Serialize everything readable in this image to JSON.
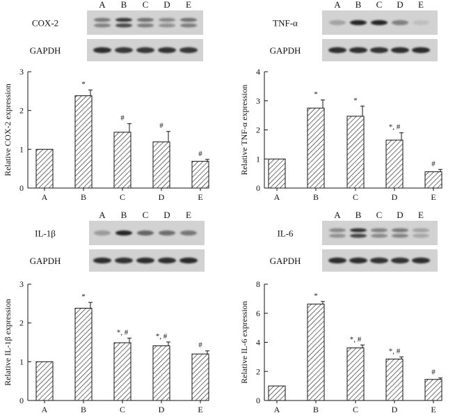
{
  "colors": {
    "bar_fill": "#ffffff",
    "hatch": "#222222",
    "blot_bg": "#d2d2d2",
    "band": "#1a1a1a"
  },
  "panels": [
    {
      "lane_labels": [
        "A",
        "B",
        "C",
        "D",
        "E"
      ],
      "protein_label": "COX-2",
      "control_label": "GAPDH",
      "protein_band_strength": [
        0.55,
        0.95,
        0.6,
        0.45,
        0.6
      ],
      "control_band_strength": [
        0.9,
        0.85,
        0.85,
        0.88,
        0.85
      ],
      "protein_band_double": true,
      "chart_data": {
        "type": "bar",
        "categories": [
          "A",
          "B",
          "C",
          "D",
          "E"
        ],
        "values": [
          1.0,
          2.38,
          1.44,
          1.19,
          0.69
        ],
        "errors": [
          0,
          0.15,
          0.22,
          0.27,
          0.05
        ],
        "annotations": [
          "",
          "*",
          "#",
          "#",
          "#"
        ],
        "ylabel": "Relative COX-2 expression",
        "ylim": [
          0,
          3
        ],
        "yticks": [
          0,
          1,
          2,
          3
        ],
        "ytick_labels": [
          "0",
          "1",
          "2",
          "3"
        ]
      }
    },
    {
      "lane_labels": [
        "A",
        "B",
        "C",
        "D",
        "E"
      ],
      "protein_label": "TNF-α",
      "control_label": "GAPDH",
      "protein_band_strength": [
        0.25,
        0.95,
        0.95,
        0.45,
        0.1
      ],
      "control_band_strength": [
        0.9,
        0.9,
        0.88,
        0.9,
        0.92
      ],
      "protein_band_double": false,
      "chart_data": {
        "type": "bar",
        "categories": [
          "A",
          "B",
          "C",
          "D",
          "E"
        ],
        "values": [
          1.0,
          2.75,
          2.47,
          1.65,
          0.56
        ],
        "errors": [
          0,
          0.28,
          0.35,
          0.25,
          0.08
        ],
        "annotations": [
          "",
          "*",
          "*",
          "*, #",
          "#"
        ],
        "ylabel": "Relative TNF-α expression",
        "ylim": [
          0,
          4
        ],
        "yticks": [
          0,
          1,
          2,
          3,
          4
        ],
        "ytick_labels": [
          "0",
          "1",
          "2",
          "3",
          "4"
        ]
      }
    },
    {
      "lane_labels": [
        "A",
        "B",
        "C",
        "D",
        "E"
      ],
      "protein_label": "IL-1β",
      "control_label": "GAPDH",
      "protein_band_strength": [
        0.3,
        0.95,
        0.6,
        0.55,
        0.5
      ],
      "control_band_strength": [
        0.9,
        0.88,
        0.9,
        0.9,
        0.92
      ],
      "protein_band_double": false,
      "chart_data": {
        "type": "bar",
        "categories": [
          "A",
          "B",
          "C",
          "D",
          "E"
        ],
        "values": [
          1.0,
          2.38,
          1.49,
          1.41,
          1.2
        ],
        "errors": [
          0,
          0.15,
          0.12,
          0.1,
          0.08
        ],
        "annotations": [
          "",
          "*",
          "*, #",
          "*, #",
          "#"
        ],
        "ylabel": "Relative IL-1β expression",
        "ylim": [
          0,
          3
        ],
        "yticks": [
          0,
          1,
          2,
          3
        ],
        "ytick_labels": [
          "0",
          "1",
          "2",
          "3"
        ]
      }
    },
    {
      "lane_labels": [
        "A",
        "B",
        "C",
        "D",
        "E"
      ],
      "protein_label": "IL-6",
      "control_label": "GAPDH",
      "protein_band_strength": [
        0.45,
        0.98,
        0.5,
        0.55,
        0.3
      ],
      "control_band_strength": [
        0.9,
        0.9,
        0.88,
        0.88,
        0.9
      ],
      "protein_band_double": true,
      "chart_data": {
        "type": "bar",
        "categories": [
          "A",
          "B",
          "C",
          "D",
          "E"
        ],
        "values": [
          1.0,
          6.63,
          3.62,
          2.85,
          1.45
        ],
        "errors": [
          0,
          0.18,
          0.2,
          0.15,
          0.1
        ],
        "annotations": [
          "",
          "*",
          "*, #",
          "*, #",
          "#"
        ],
        "ylabel": "Relative IL-6 expression",
        "ylim": [
          0,
          8
        ],
        "yticks": [
          0,
          2,
          4,
          6,
          8
        ],
        "ytick_labels": [
          "0",
          "2",
          "4",
          "6",
          "8"
        ]
      }
    }
  ]
}
